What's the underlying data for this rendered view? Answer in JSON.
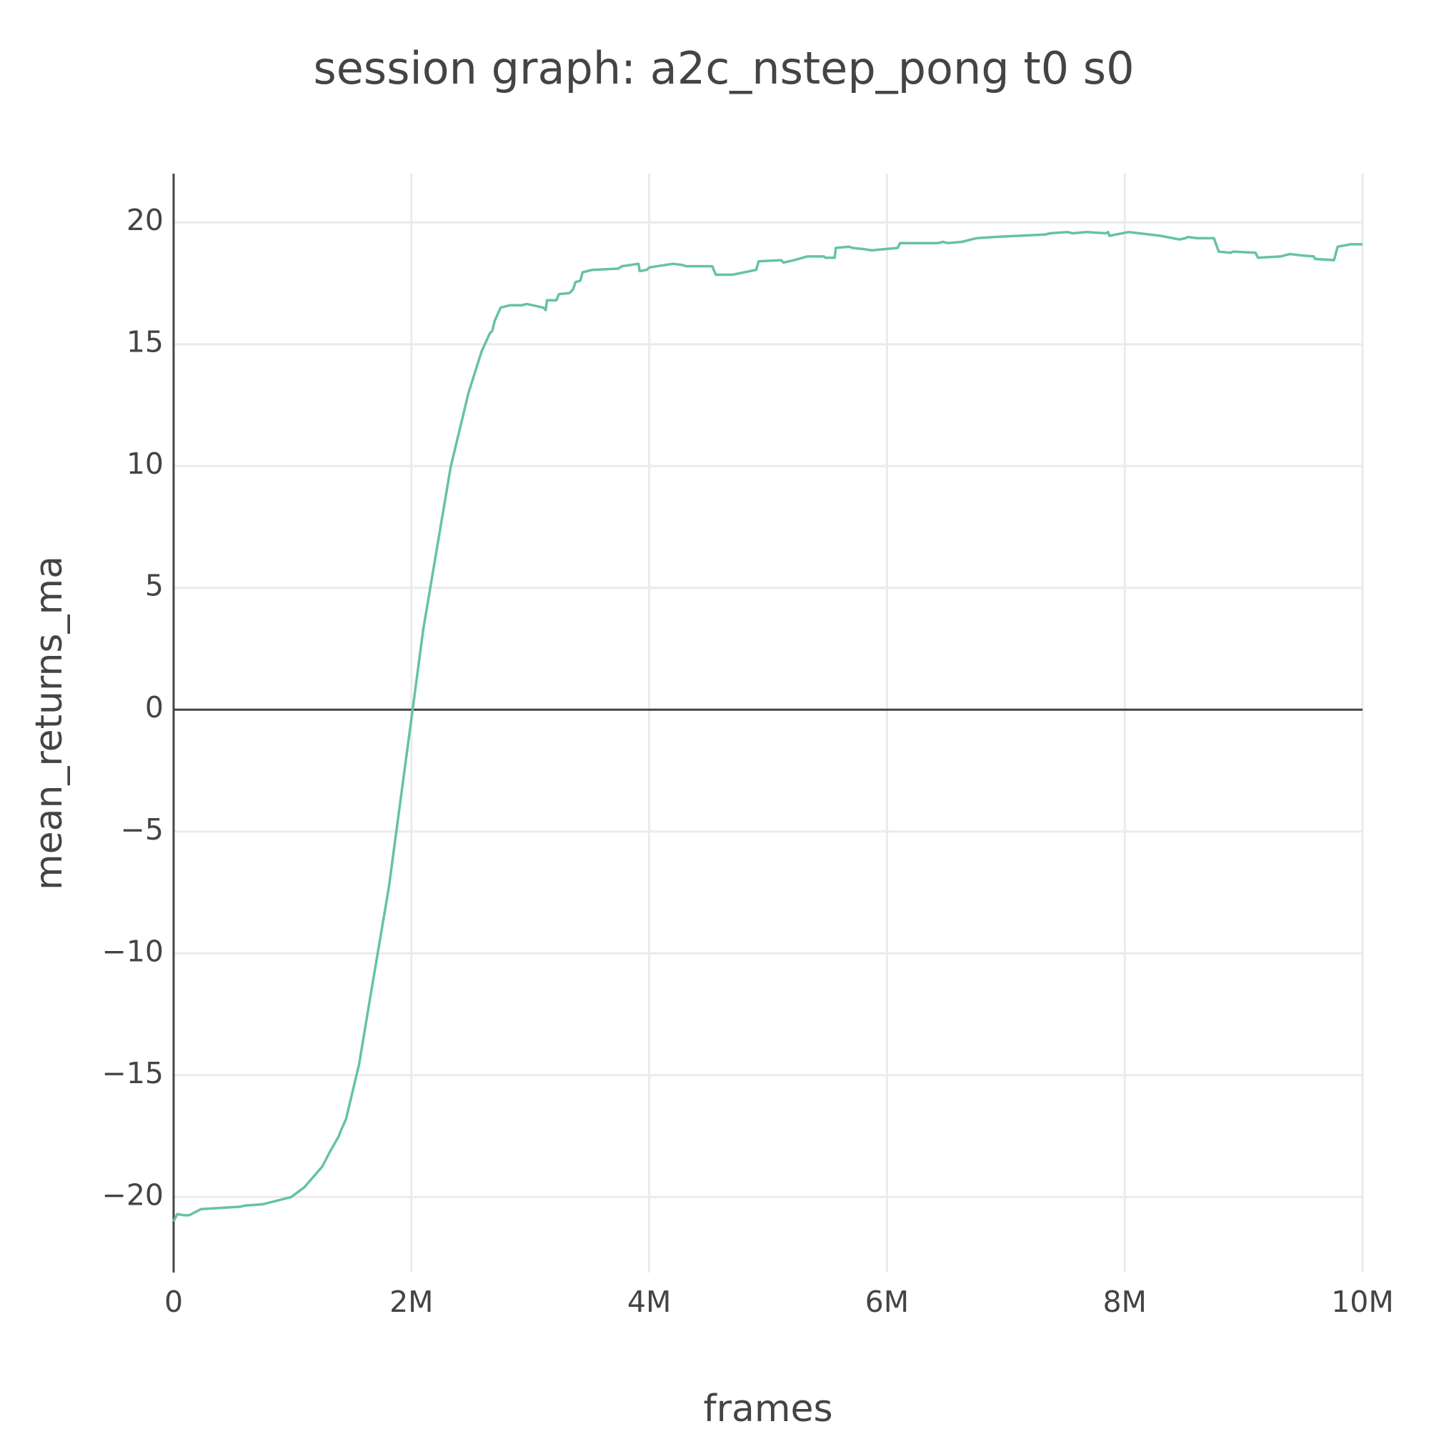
{
  "chart_data": {
    "type": "line",
    "title": "session graph: a2c_nstep_pong t0 s0",
    "x_label": "frames",
    "y_label": "mean_returns_ma",
    "xlim": [
      0,
      10000000
    ],
    "ylim": [
      -23.1,
      22
    ],
    "xticks": [
      0,
      {
        "value": 2000000,
        "label": "2M"
      },
      {
        "value": 4000000,
        "label": "4M"
      },
      {
        "value": 6000000,
        "label": "6M"
      },
      {
        "value": 8000000,
        "label": "8M"
      },
      {
        "value": 10000000,
        "label": "10M"
      }
    ],
    "yticks": [
      {
        "value": -20,
        "label": "−20"
      },
      {
        "value": -15,
        "label": "−15"
      },
      {
        "value": -10,
        "label": "−10"
      },
      {
        "value": -5,
        "label": "−5"
      },
      0,
      5,
      10,
      15,
      20
    ],
    "grid": true,
    "zeroline": true,
    "series": [
      {
        "name": "mean_returns_ma",
        "color": "#66c2a5",
        "x": [
          0,
          30000,
          90000,
          130000,
          230000,
          560000,
          600000,
          750000,
          990000,
          1100000,
          1250000,
          1320000,
          1390000,
          1400000,
          1450000,
          1560000,
          1650000,
          1810000,
          2010000,
          2100000,
          2330000,
          2480000,
          2590000,
          2660000,
          2680000,
          2700000,
          2750000,
          2830000,
          2930000,
          2970000,
          3110000,
          3130000,
          3140000,
          3220000,
          3240000,
          3330000,
          3360000,
          3380000,
          3420000,
          3440000,
          3520000,
          3740000,
          3770000,
          3910000,
          3920000,
          3980000,
          4000000,
          4200000,
          4280000,
          4310000,
          4530000,
          4560000,
          4700000,
          4900000,
          4920000,
          5110000,
          5130000,
          5220000,
          5330000,
          5470000,
          5480000,
          5560000,
          5570000,
          5680000,
          5710000,
          5810000,
          5870000,
          6090000,
          6110000,
          6430000,
          6470000,
          6510000,
          6630000,
          6750000,
          6900000,
          7330000,
          7370000,
          7520000,
          7560000,
          7680000,
          7840000,
          7860000,
          7870000,
          8030000,
          8300000,
          8460000,
          8510000,
          8530000,
          8610000,
          8750000,
          8790000,
          8890000,
          8910000,
          9100000,
          9120000,
          9310000,
          9390000,
          9470000,
          9590000,
          9600000,
          9760000,
          9790000,
          9900000,
          10000000
        ],
        "values": [
          -21.0,
          -20.7,
          -20.75,
          -20.75,
          -20.5,
          -20.4,
          -20.35,
          -20.3,
          -20.0,
          -19.6,
          -18.75,
          -18.1,
          -17.5,
          -17.35,
          -16.8,
          -14.55,
          -11.9,
          -7.3,
          0,
          3.3,
          9.95,
          13.0,
          14.7,
          15.45,
          15.55,
          15.95,
          16.5,
          16.6,
          16.6,
          16.65,
          16.5,
          16.4,
          16.8,
          16.8,
          17.05,
          17.1,
          17.25,
          17.55,
          17.6,
          17.95,
          18.05,
          18.1,
          18.2,
          18.3,
          18.0,
          18.05,
          18.15,
          18.3,
          18.25,
          18.2,
          18.2,
          17.85,
          17.85,
          18.05,
          18.4,
          18.45,
          18.35,
          18.45,
          18.6,
          18.6,
          18.55,
          18.55,
          18.95,
          19.0,
          18.95,
          18.9,
          18.85,
          18.95,
          19.15,
          19.15,
          19.2,
          19.15,
          19.2,
          19.35,
          19.4,
          19.5,
          19.55,
          19.6,
          19.55,
          19.6,
          19.55,
          19.6,
          19.45,
          19.6,
          19.45,
          19.3,
          19.35,
          19.4,
          19.35,
          19.35,
          18.8,
          18.75,
          18.8,
          18.75,
          18.55,
          18.6,
          18.7,
          18.65,
          18.6,
          18.5,
          18.45,
          19.0,
          19.1,
          19.1
        ]
      }
    ]
  }
}
